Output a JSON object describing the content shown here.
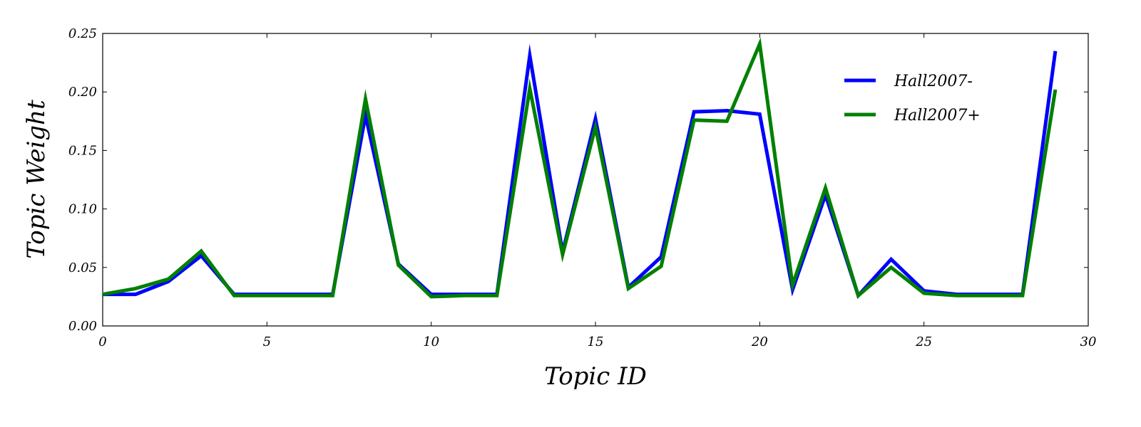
{
  "chart_data": {
    "type": "line",
    "title": "",
    "xlabel": "Topic ID",
    "ylabel": "Topic Weight",
    "xlim": [
      0,
      30
    ],
    "ylim": [
      0,
      0.25
    ],
    "x_ticks": [
      0,
      5,
      10,
      15,
      20,
      25,
      30
    ],
    "x_tick_labels": [
      "0",
      "5",
      "10",
      "15",
      "20",
      "25",
      "30"
    ],
    "y_ticks": [
      0,
      0.05,
      0.1,
      0.15,
      0.2,
      0.25
    ],
    "y_tick_labels": [
      "0.00",
      "0.05",
      "0.10",
      "0.15",
      "0.20",
      "0.25"
    ],
    "grid": false,
    "legend_position": "top-right",
    "x": [
      0,
      1,
      2,
      3,
      4,
      5,
      6,
      7,
      8,
      9,
      10,
      11,
      12,
      13,
      14,
      15,
      16,
      17,
      18,
      19,
      20,
      21,
      22,
      23,
      24,
      25,
      26,
      27,
      28,
      29
    ],
    "series": [
      {
        "name": "Hall2007-",
        "color": "#0000ff",
        "values": [
          0.027,
          0.027,
          0.038,
          0.06,
          0.027,
          0.027,
          0.027,
          0.027,
          0.18,
          0.053,
          0.027,
          0.027,
          0.027,
          0.231,
          0.063,
          0.177,
          0.033,
          0.059,
          0.183,
          0.184,
          0.181,
          0.031,
          0.112,
          0.026,
          0.057,
          0.03,
          0.027,
          0.027,
          0.027,
          0.235
        ]
      },
      {
        "name": "Hall2007+",
        "color": "#008000",
        "values": [
          0.027,
          0.032,
          0.04,
          0.064,
          0.026,
          0.026,
          0.026,
          0.026,
          0.194,
          0.052,
          0.025,
          0.026,
          0.026,
          0.203,
          0.061,
          0.17,
          0.032,
          0.051,
          0.176,
          0.175,
          0.241,
          0.035,
          0.118,
          0.026,
          0.05,
          0.028,
          0.026,
          0.026,
          0.026,
          0.202
        ]
      }
    ]
  }
}
